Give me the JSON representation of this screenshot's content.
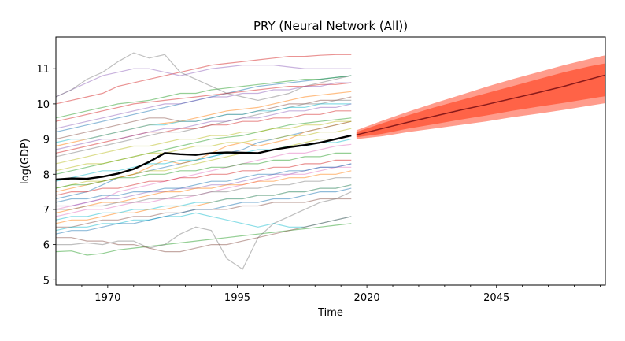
{
  "chart_data": {
    "type": "line",
    "title": "PRY (Neural Network (All))",
    "xlabel": "Time",
    "ylabel": "log(GDP)",
    "xlim": [
      1960,
      2066
    ],
    "ylim": [
      4.85,
      11.9
    ],
    "xticks": [
      1970,
      1995,
      2020,
      2045
    ],
    "xtick_labels": [
      "1970",
      "1995",
      "2020",
      "2045"
    ],
    "yticks": [
      5,
      6,
      7,
      8,
      9,
      10,
      11
    ],
    "ytick_labels": [
      "5",
      "6",
      "7",
      "8",
      "9",
      "10",
      "11"
    ],
    "grid": false,
    "legend": "none",
    "colors": {
      "history": "#000000",
      "forecast_line": "#8b1a1a",
      "band_inner": "#ff6347",
      "band_outer": "#ff9c8c"
    },
    "history": {
      "x": [
        1960,
        1963,
        1966,
        1969,
        1972,
        1975,
        1978,
        1981,
        1984,
        1987,
        1990,
        1993,
        1996,
        1999,
        2002,
        2005,
        2008,
        2011,
        2014,
        2017
      ],
      "y": [
        7.85,
        7.88,
        7.87,
        7.93,
        8.02,
        8.15,
        8.35,
        8.6,
        8.57,
        8.55,
        8.6,
        8.62,
        8.61,
        8.6,
        8.7,
        8.77,
        8.83,
        8.9,
        9.0,
        9.1
      ]
    },
    "forecast": {
      "x": [
        2018,
        2023,
        2028,
        2033,
        2038,
        2043,
        2048,
        2053,
        2058,
        2063,
        2066
      ],
      "median": [
        9.12,
        9.3,
        9.48,
        9.65,
        9.82,
        9.98,
        10.15,
        10.32,
        10.5,
        10.7,
        10.82
      ],
      "inner_low": [
        9.05,
        9.15,
        9.3,
        9.42,
        9.55,
        9.67,
        9.8,
        9.92,
        10.03,
        10.15,
        10.22
      ],
      "inner_high": [
        9.2,
        9.45,
        9.68,
        9.9,
        10.1,
        10.3,
        10.5,
        10.7,
        10.9,
        11.07,
        11.15
      ],
      "outer_low": [
        9.0,
        9.08,
        9.2,
        9.3,
        9.4,
        9.5,
        9.62,
        9.72,
        9.83,
        9.95,
        10.02
      ],
      "outer_high": [
        9.25,
        9.52,
        9.78,
        10.02,
        10.25,
        10.48,
        10.7,
        10.9,
        11.1,
        11.28,
        11.38
      ]
    },
    "peer_series": [
      {
        "color": "#1f77b4",
        "y": [
          7.3,
          7.4,
          7.5,
          7.7,
          7.9,
          8.0,
          8.1,
          8.2,
          8.3,
          8.4,
          8.5,
          8.6,
          8.7,
          8.9,
          9.0,
          9.1,
          9.2,
          9.3,
          9.4,
          9.5
        ]
      },
      {
        "color": "#ff7f0e",
        "y": [
          8.8,
          8.9,
          9.0,
          9.1,
          9.2,
          9.3,
          9.4,
          9.45,
          9.5,
          9.6,
          9.7,
          9.8,
          9.85,
          9.9,
          10.0,
          10.1,
          10.2,
          10.25,
          10.3,
          10.35
        ]
      },
      {
        "color": "#2ca02c",
        "y": [
          5.8,
          5.82,
          5.7,
          5.75,
          5.85,
          5.9,
          5.95,
          6.0,
          6.05,
          6.1,
          6.15,
          6.2,
          6.25,
          6.3,
          6.35,
          6.4,
          6.45,
          6.5,
          6.55,
          6.6
        ]
      },
      {
        "color": "#d62728",
        "y": [
          10.0,
          10.1,
          10.2,
          10.3,
          10.5,
          10.6,
          10.7,
          10.8,
          10.9,
          11.0,
          11.1,
          11.15,
          11.2,
          11.25,
          11.3,
          11.35,
          11.35,
          11.38,
          11.4,
          11.4
        ]
      },
      {
        "color": "#9467bd",
        "y": [
          10.2,
          10.4,
          10.6,
          10.8,
          10.9,
          11.0,
          11.0,
          10.9,
          10.8,
          10.9,
          11.0,
          11.05,
          11.1,
          11.1,
          11.1,
          11.05,
          11.0,
          11.0,
          11.0,
          11.0
        ]
      },
      {
        "color": "#8c564b",
        "y": [
          6.5,
          6.5,
          6.6,
          6.7,
          6.7,
          6.8,
          6.8,
          6.9,
          6.9,
          7.0,
          7.0,
          7.0,
          7.1,
          7.1,
          7.2,
          7.2,
          7.2,
          7.3,
          7.3,
          7.3
        ]
      },
      {
        "color": "#e377c2",
        "y": [
          7.0,
          7.1,
          7.2,
          7.3,
          7.5,
          7.6,
          7.7,
          7.8,
          7.9,
          8.0,
          8.1,
          8.2,
          8.3,
          8.4,
          8.5,
          8.6,
          8.6,
          8.7,
          8.8,
          8.85
        ]
      },
      {
        "color": "#7f7f7f",
        "y": [
          10.2,
          10.4,
          10.7,
          10.9,
          11.2,
          11.45,
          11.3,
          11.4,
          10.9,
          10.7,
          10.5,
          10.3,
          10.2,
          10.1,
          10.2,
          10.3,
          10.5,
          10.6,
          10.7,
          10.8
        ]
      },
      {
        "color": "#7f7f7f",
        "y": [
          6.0,
          6.0,
          6.05,
          6.0,
          6.1,
          6.1,
          5.9,
          6.0,
          6.3,
          6.5,
          6.4,
          5.6,
          5.3,
          6.2,
          6.6,
          6.8,
          7.0,
          7.2,
          7.3,
          7.5
        ]
      },
      {
        "color": "#bcbd22",
        "y": [
          7.6,
          7.7,
          7.8,
          7.8,
          7.9,
          8.0,
          8.1,
          8.1,
          8.2,
          8.3,
          8.4,
          8.5,
          8.6,
          8.6,
          8.7,
          8.8,
          8.9,
          9.0,
          9.0,
          9.1
        ]
      },
      {
        "color": "#17becf",
        "y": [
          6.4,
          6.5,
          6.5,
          6.6,
          6.6,
          6.7,
          6.7,
          6.8,
          6.8,
          6.9,
          6.8,
          6.7,
          6.6,
          6.5,
          6.6,
          6.5,
          6.5,
          6.6,
          6.7,
          6.8
        ]
      },
      {
        "color": "#1f77b4",
        "y": [
          9.2,
          9.3,
          9.4,
          9.5,
          9.6,
          9.7,
          9.8,
          9.9,
          10.0,
          10.1,
          10.2,
          10.3,
          10.4,
          10.5,
          10.55,
          10.6,
          10.65,
          10.7,
          10.75,
          10.8
        ]
      },
      {
        "color": "#ff7f0e",
        "y": [
          7.5,
          7.6,
          7.7,
          7.8,
          7.9,
          8.0,
          8.2,
          8.4,
          8.3,
          8.4,
          8.6,
          8.8,
          8.9,
          8.8,
          8.9,
          9.0,
          9.2,
          9.3,
          9.4,
          9.5
        ]
      },
      {
        "color": "#2ca02c",
        "y": [
          8.0,
          8.1,
          8.2,
          8.3,
          8.4,
          8.5,
          8.6,
          8.7,
          8.8,
          8.9,
          9.0,
          9.05,
          9.1,
          9.2,
          9.3,
          9.4,
          9.45,
          9.5,
          9.55,
          9.6
        ]
      },
      {
        "color": "#d62728",
        "y": [
          9.5,
          9.6,
          9.7,
          9.8,
          9.9,
          10.0,
          10.05,
          10.1,
          10.15,
          10.2,
          10.25,
          10.3,
          10.35,
          10.4,
          10.45,
          10.5,
          10.5,
          10.55,
          10.55,
          10.6
        ]
      },
      {
        "color": "#9467bd",
        "y": [
          7.1,
          7.1,
          7.2,
          7.3,
          7.3,
          7.4,
          7.5,
          7.5,
          7.6,
          7.6,
          7.7,
          7.7,
          7.8,
          7.9,
          8.0,
          8.0,
          8.1,
          8.2,
          8.2,
          8.3
        ]
      },
      {
        "color": "#8c564b",
        "y": [
          9.0,
          9.1,
          9.2,
          9.3,
          9.4,
          9.5,
          9.6,
          9.6,
          9.5,
          9.5,
          9.6,
          9.7,
          9.7,
          9.8,
          9.9,
          10.0,
          10.0,
          10.1,
          10.1,
          10.2
        ]
      },
      {
        "color": "#e377c2",
        "y": [
          6.8,
          6.9,
          7.0,
          7.0,
          7.1,
          7.2,
          7.2,
          7.3,
          7.3,
          7.4,
          7.5,
          7.6,
          7.7,
          7.8,
          7.9,
          8.0,
          8.0,
          8.1,
          8.2,
          8.2
        ]
      },
      {
        "color": "#7f7f7f",
        "y": [
          8.5,
          8.6,
          8.7,
          8.8,
          8.9,
          9.0,
          9.1,
          9.2,
          9.2,
          9.3,
          9.4,
          9.5,
          9.6,
          9.7,
          9.8,
          9.9,
          10.0,
          10.0,
          10.1,
          10.1
        ]
      },
      {
        "color": "#bcbd22",
        "y": [
          8.3,
          8.4,
          8.5,
          8.6,
          8.7,
          8.8,
          8.8,
          8.9,
          9.0,
          9.0,
          9.1,
          9.1,
          9.2,
          9.2,
          9.3,
          9.3,
          9.4,
          9.4,
          9.5,
          9.5
        ]
      },
      {
        "color": "#17becf",
        "y": [
          7.8,
          7.9,
          8.0,
          8.1,
          8.1,
          8.2,
          8.3,
          8.3,
          8.4,
          8.4,
          8.5,
          8.6,
          8.6,
          8.7,
          8.7,
          8.8,
          8.8,
          8.9,
          8.9,
          9.0
        ]
      },
      {
        "color": "#1f77b4",
        "y": [
          6.3,
          6.4,
          6.4,
          6.5,
          6.6,
          6.6,
          6.7,
          6.8,
          6.9,
          7.0,
          7.0,
          7.1,
          7.2,
          7.2,
          7.3,
          7.3,
          7.4,
          7.5,
          7.5,
          7.6
        ]
      },
      {
        "color": "#ff7f0e",
        "y": [
          6.9,
          7.0,
          7.1,
          7.2,
          7.2,
          7.3,
          7.4,
          7.5,
          7.5,
          7.6,
          7.6,
          7.7,
          7.7,
          7.8,
          7.8,
          7.9,
          7.9,
          8.0,
          8.0,
          8.1
        ]
      },
      {
        "color": "#2ca02c",
        "y": [
          7.6,
          7.7,
          7.7,
          7.8,
          7.9,
          7.9,
          8.0,
          8.0,
          8.1,
          8.1,
          8.2,
          8.2,
          8.3,
          8.3,
          8.4,
          8.4,
          8.5,
          8.5,
          8.6,
          8.6
        ]
      },
      {
        "color": "#d62728",
        "y": [
          8.6,
          8.7,
          8.8,
          8.9,
          9.0,
          9.1,
          9.2,
          9.2,
          9.3,
          9.3,
          9.4,
          9.4,
          9.5,
          9.5,
          9.6,
          9.6,
          9.7,
          9.7,
          9.8,
          9.8
        ]
      },
      {
        "color": "#9467bd",
        "y": [
          9.3,
          9.4,
          9.5,
          9.6,
          9.7,
          9.8,
          9.9,
          10.0,
          10.0,
          10.1,
          10.2,
          10.2,
          10.3,
          10.3,
          10.4,
          10.4,
          10.5,
          10.5,
          10.6,
          10.6
        ]
      },
      {
        "color": "#8c564b",
        "y": [
          6.2,
          6.2,
          6.1,
          6.1,
          6.0,
          6.0,
          5.9,
          5.8,
          5.8,
          5.9,
          6.0,
          6.0,
          6.1,
          6.2,
          6.3,
          6.4,
          6.5,
          6.6,
          6.7,
          6.8
        ]
      },
      {
        "color": "#bcbd22",
        "y": [
          8.1,
          8.2,
          8.3,
          8.3,
          8.4,
          8.5,
          8.6,
          8.6,
          8.7,
          8.8,
          8.8,
          8.9,
          8.9,
          9.0,
          9.0,
          9.1,
          9.1,
          9.2,
          9.2,
          9.3
        ]
      },
      {
        "color": "#17becf",
        "y": [
          8.9,
          9.0,
          9.0,
          9.1,
          9.2,
          9.3,
          9.4,
          9.4,
          9.5,
          9.5,
          9.6,
          9.7,
          9.7,
          9.8,
          9.8,
          9.9,
          9.9,
          10.0,
          10.0,
          10.0
        ]
      },
      {
        "color": "#1f77b4",
        "y": [
          7.2,
          7.3,
          7.3,
          7.4,
          7.4,
          7.5,
          7.5,
          7.6,
          7.6,
          7.7,
          7.8,
          7.8,
          7.9,
          8.0,
          8.0,
          8.1,
          8.1,
          8.2,
          8.2,
          8.3
        ]
      },
      {
        "color": "#ff7f0e",
        "y": [
          6.6,
          6.7,
          6.7,
          6.8,
          6.9,
          6.9,
          7.0,
          7.0,
          7.1,
          7.1,
          7.2,
          7.3,
          7.3,
          7.4,
          7.4,
          7.5,
          7.5,
          7.6,
          7.6,
          7.7
        ]
      },
      {
        "color": "#2ca02c",
        "y": [
          9.6,
          9.7,
          9.8,
          9.9,
          10.0,
          10.05,
          10.1,
          10.2,
          10.3,
          10.3,
          10.4,
          10.45,
          10.5,
          10.55,
          10.6,
          10.65,
          10.7,
          10.7,
          10.75,
          10.8
        ]
      },
      {
        "color": "#d62728",
        "y": [
          7.4,
          7.5,
          7.5,
          7.6,
          7.6,
          7.7,
          7.8,
          7.8,
          7.9,
          7.9,
          8.0,
          8.0,
          8.1,
          8.1,
          8.2,
          8.2,
          8.3,
          8.3,
          8.4,
          8.4
        ]
      },
      {
        "color": "#7f7f7f",
        "y": [
          7.0,
          7.0,
          7.1,
          7.1,
          7.2,
          7.2,
          7.3,
          7.3,
          7.4,
          7.4,
          7.5,
          7.5,
          7.6,
          7.6,
          7.7,
          7.7,
          7.8,
          7.8,
          7.9,
          7.9
        ]
      },
      {
        "color": "#9467bd",
        "y": [
          8.7,
          8.8,
          8.9,
          9.0,
          9.0,
          9.1,
          9.2,
          9.3,
          9.3,
          9.4,
          9.5,
          9.5,
          9.6,
          9.6,
          9.7,
          9.8,
          9.8,
          9.9,
          9.9,
          10.0
        ]
      },
      {
        "color": "#17becf",
        "y": [
          6.7,
          6.8,
          6.8,
          6.9,
          6.9,
          7.0,
          7.0,
          7.1,
          7.1,
          7.2,
          7.2,
          7.3,
          7.3,
          7.4,
          7.4,
          7.5,
          7.5,
          7.6,
          7.6,
          7.7
        ]
      }
    ]
  }
}
